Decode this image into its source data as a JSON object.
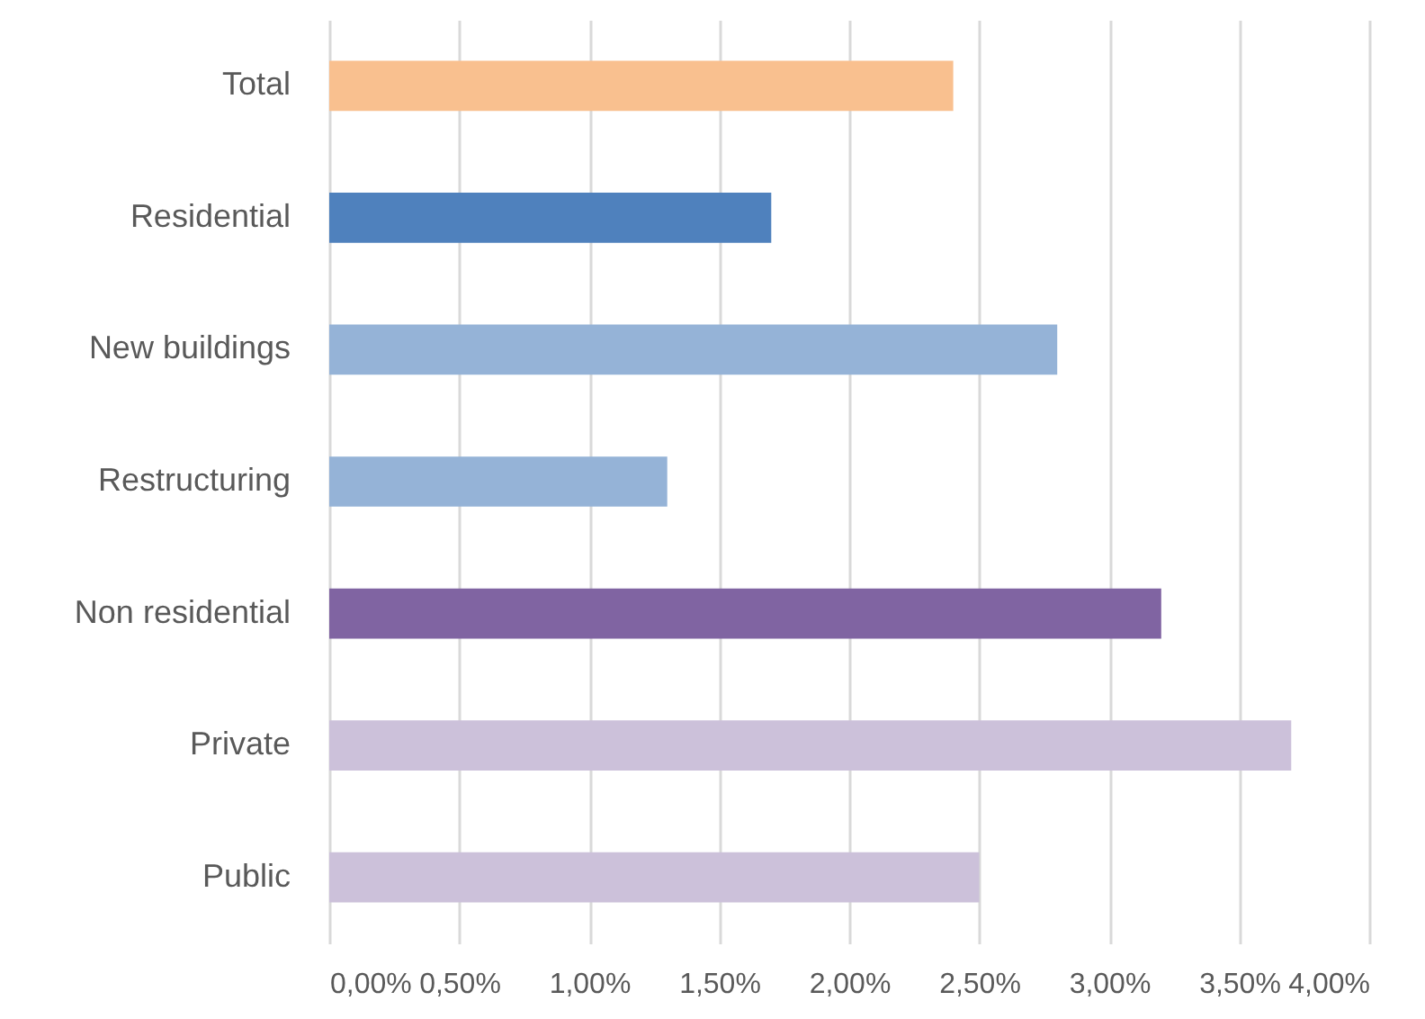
{
  "chart_data": {
    "type": "bar",
    "orientation": "horizontal",
    "categories": [
      "Total",
      "Residential",
      "New buildings",
      "Restructuring",
      "Non residential",
      "Private",
      "Public"
    ],
    "values": [
      2.4,
      1.7,
      2.8,
      1.3,
      3.2,
      3.7,
      2.5
    ],
    "colors": [
      "#f9c08f",
      "#4f81bd",
      "#95b3d7",
      "#95b3d7",
      "#8064a2",
      "#ccc1da",
      "#ccc1da"
    ],
    "xlim": [
      0,
      4
    ],
    "xticks": [
      {
        "value": 0,
        "label": "0,00%"
      },
      {
        "value": 0.5,
        "label": "0,50%"
      },
      {
        "value": 1,
        "label": "1,00%"
      },
      {
        "value": 1.5,
        "label": "1,50%"
      },
      {
        "value": 2,
        "label": "2,00%"
      },
      {
        "value": 2.5,
        "label": "2,50%"
      },
      {
        "value": 3,
        "label": "3,00%"
      },
      {
        "value": 3.5,
        "label": "3,50%"
      },
      {
        "value": 4,
        "label": "4,00%"
      }
    ],
    "grid": "x"
  }
}
